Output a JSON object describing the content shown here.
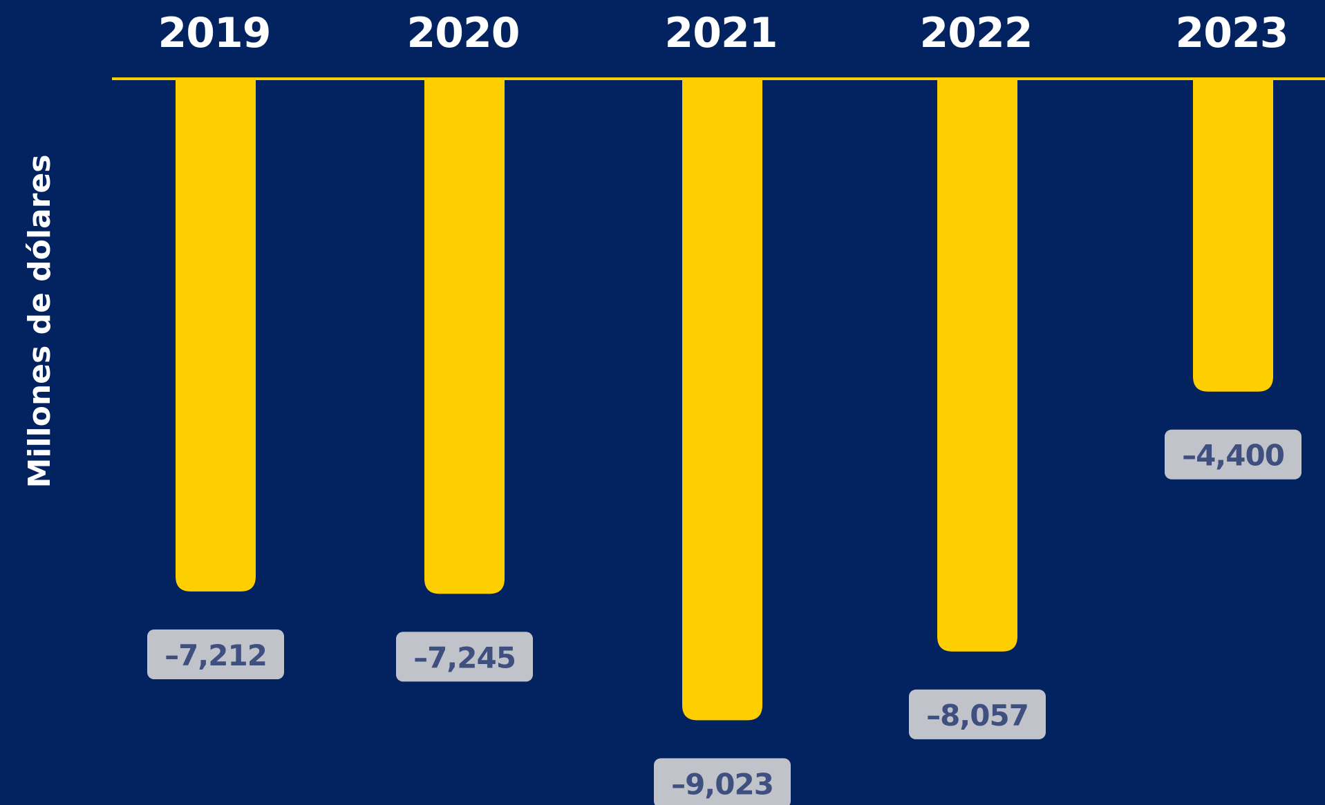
{
  "colors": {
    "background": "#02235f",
    "bar": "#fecf00",
    "baseline": "#fecf00",
    "label_box": "#c0c3c9",
    "label_text": "#3f4f7f",
    "year_text": "#ffffff"
  },
  "chart_data": {
    "type": "bar",
    "orientation": "vertical",
    "categories": [
      "2019",
      "2020",
      "2021",
      "2022",
      "2023"
    ],
    "values": [
      -7212,
      -7245,
      -9023,
      -8057,
      -4400
    ],
    "value_labels": [
      "–7,212",
      "–7,245",
      "–9,023",
      "–8,057",
      "–4,400"
    ],
    "ylabel": "Millones de dólares",
    "xlabel": "",
    "title": "",
    "ylim": [
      -11000,
      0
    ],
    "category_axis_position": "top",
    "grid": false,
    "legend": "none"
  }
}
